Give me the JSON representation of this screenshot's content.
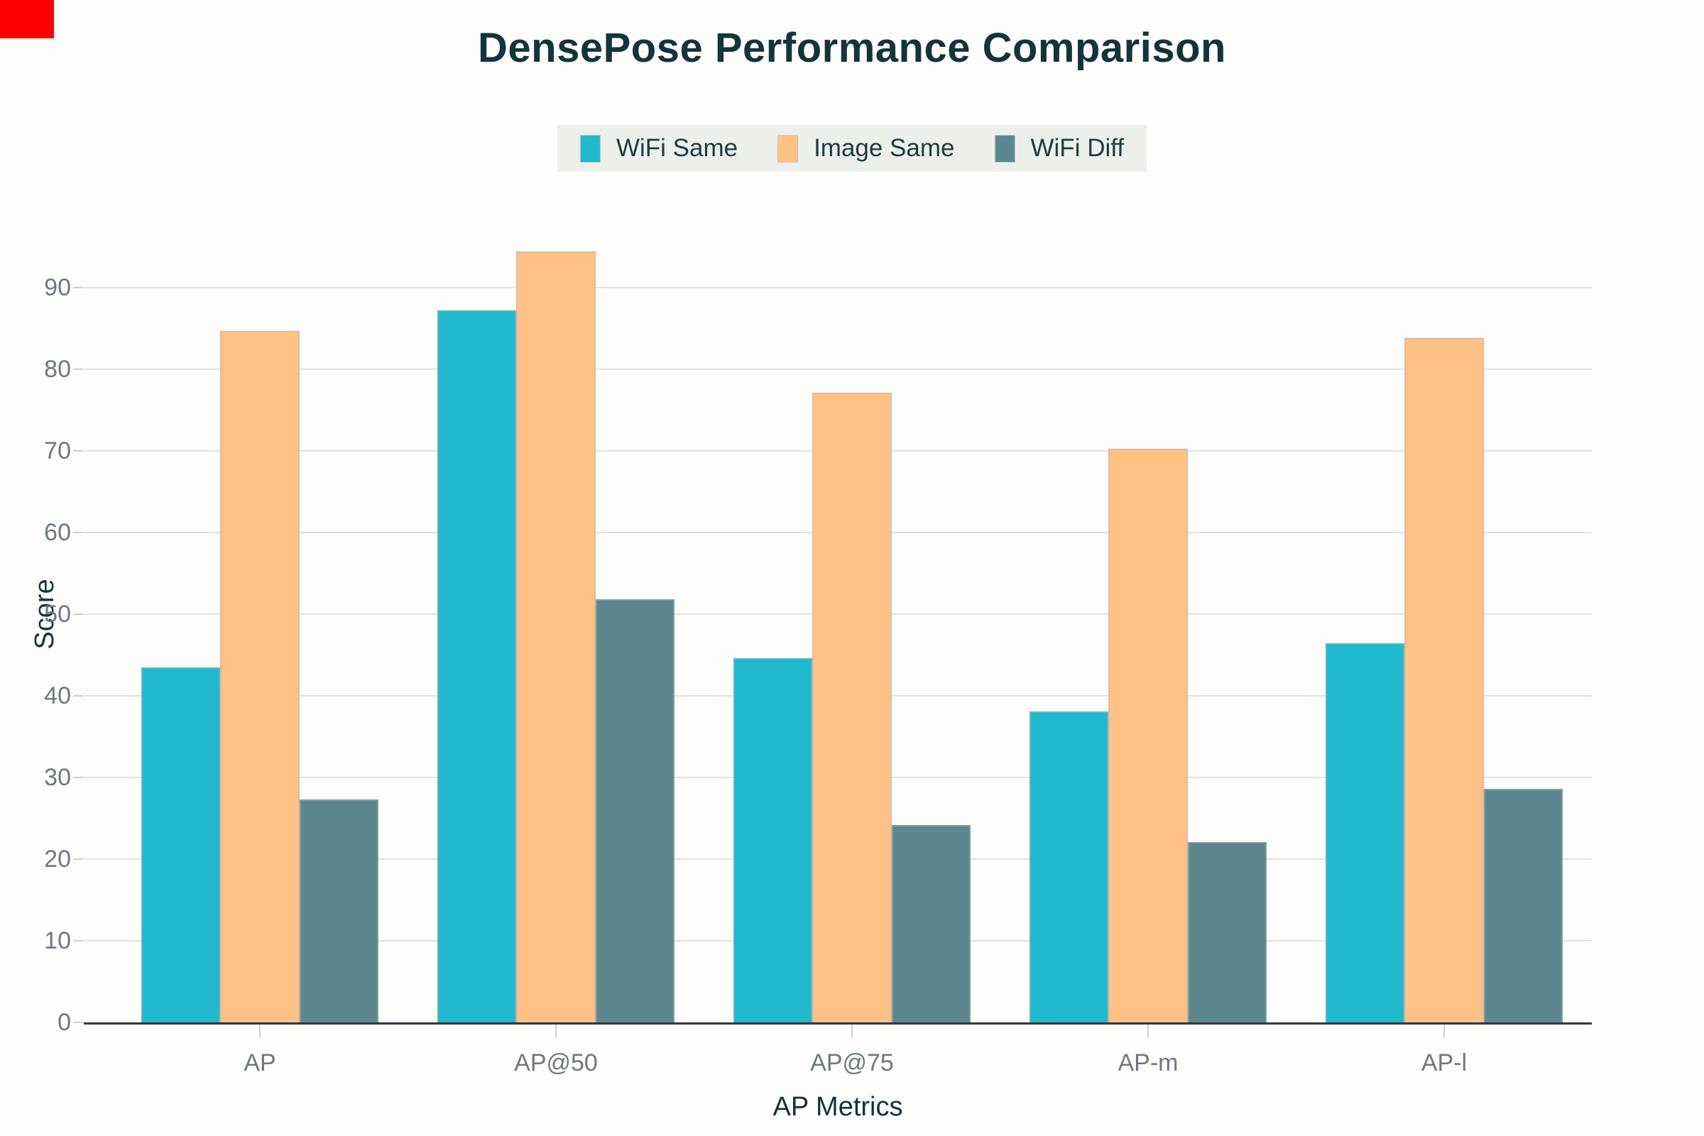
{
  "page": {
    "background_color": "#fdfdfb",
    "red_marker_color": "#fe0000"
  },
  "chart_data": {
    "type": "bar",
    "title": "DensePose Performance Comparison",
    "categories": [
      "AP",
      "AP@50",
      "AP@75",
      "AP-m",
      "AP-l"
    ],
    "series": [
      {
        "name": "WiFi Same",
        "color": "#1FB8CD",
        "values": [
          43.5,
          87.2,
          44.6,
          38.1,
          46.4
        ]
      },
      {
        "name": "Image Same",
        "color": "#FFC185",
        "values": [
          84.7,
          94.4,
          77.1,
          70.3,
          83.8
        ]
      },
      {
        "name": "WiFi Diff",
        "color": "#5D878F",
        "values": [
          27.3,
          51.8,
          24.2,
          22.1,
          28.6
        ]
      }
    ],
    "xlabel": "AP Metrics",
    "ylabel": "Score",
    "ylim": [
      0,
      100
    ],
    "yticks": [
      0,
      10,
      20,
      30,
      40,
      50,
      60,
      70,
      80,
      90
    ],
    "grid": true,
    "legend_position": "top-center",
    "legend_background": "#edf0ea",
    "title_color": "#13343B",
    "axis_label_color": "#13343B",
    "tick_label_color": "#6e787c",
    "gridline_color": "#e3e2df",
    "axis_line_color": "#33393d"
  }
}
